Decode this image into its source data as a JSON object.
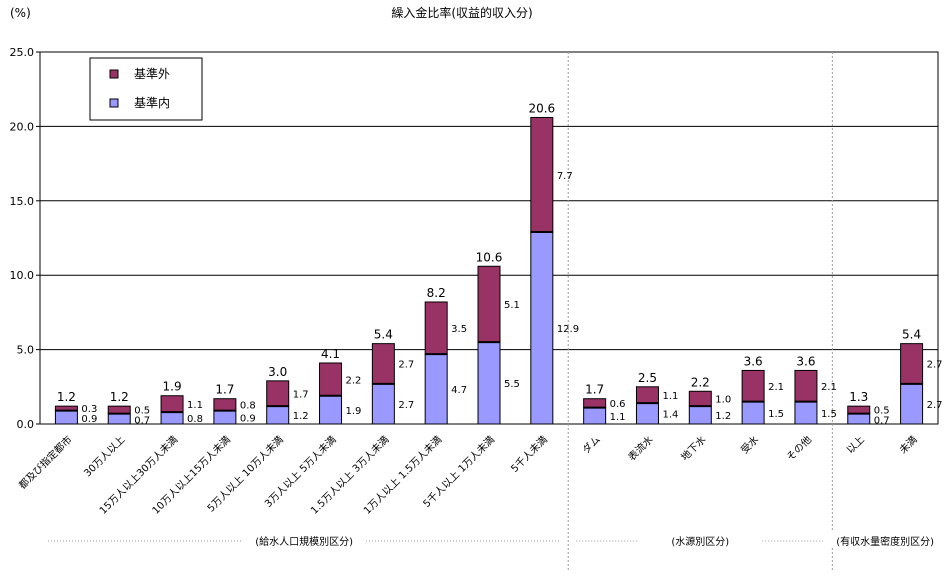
{
  "chart_data": {
    "type": "bar",
    "stacked": true,
    "title": "繰入金比率(収益的収入分)",
    "ylabel": "(%)",
    "ylim": [
      0,
      25
    ],
    "yticks": [
      "0.0",
      "5.0",
      "10.0",
      "15.0",
      "20.0",
      "25.0"
    ],
    "grid": true,
    "legend_position": "top-left",
    "categories": [
      "都及び指定都市",
      "30万人以上",
      "15万人以上30万人未満",
      "10万人以上15万人未満",
      "5万人以上 10万人未満",
      "3万人以上 5万人未満",
      "1.5万人以上 3万人未満",
      "1万人以上 1.5万人未満",
      "5千人以上 1万人未満",
      "5千人未満",
      "ダム",
      "表流水",
      "地下水",
      "受水",
      "その他",
      "以上",
      "未満"
    ],
    "series": [
      {
        "name": "基準内",
        "color": "#9999ff",
        "values": [
          0.9,
          0.7,
          0.8,
          0.9,
          1.2,
          1.9,
          2.7,
          4.7,
          5.5,
          12.9,
          1.1,
          1.4,
          1.2,
          1.5,
          1.5,
          0.7,
          2.7
        ]
      },
      {
        "name": "基準外",
        "color": "#993366",
        "values": [
          0.3,
          0.5,
          1.1,
          0.8,
          1.7,
          2.2,
          2.7,
          3.5,
          5.1,
          7.7,
          0.6,
          1.1,
          1.0,
          2.1,
          2.1,
          0.5,
          2.7
        ]
      }
    ],
    "totals": [
      1.2,
      1.2,
      1.9,
      1.7,
      3.0,
      4.1,
      5.4,
      8.2,
      10.6,
      20.6,
      1.7,
      2.5,
      2.2,
      3.6,
      3.6,
      1.3,
      5.4
    ],
    "groups": [
      {
        "label": "(給水人口規模別区分)",
        "start": 0,
        "end": 9
      },
      {
        "label": "(水源別区分)",
        "start": 10,
        "end": 14
      },
      {
        "label": "(有収水量密度別区分)",
        "start": 15,
        "end": 16
      }
    ]
  }
}
